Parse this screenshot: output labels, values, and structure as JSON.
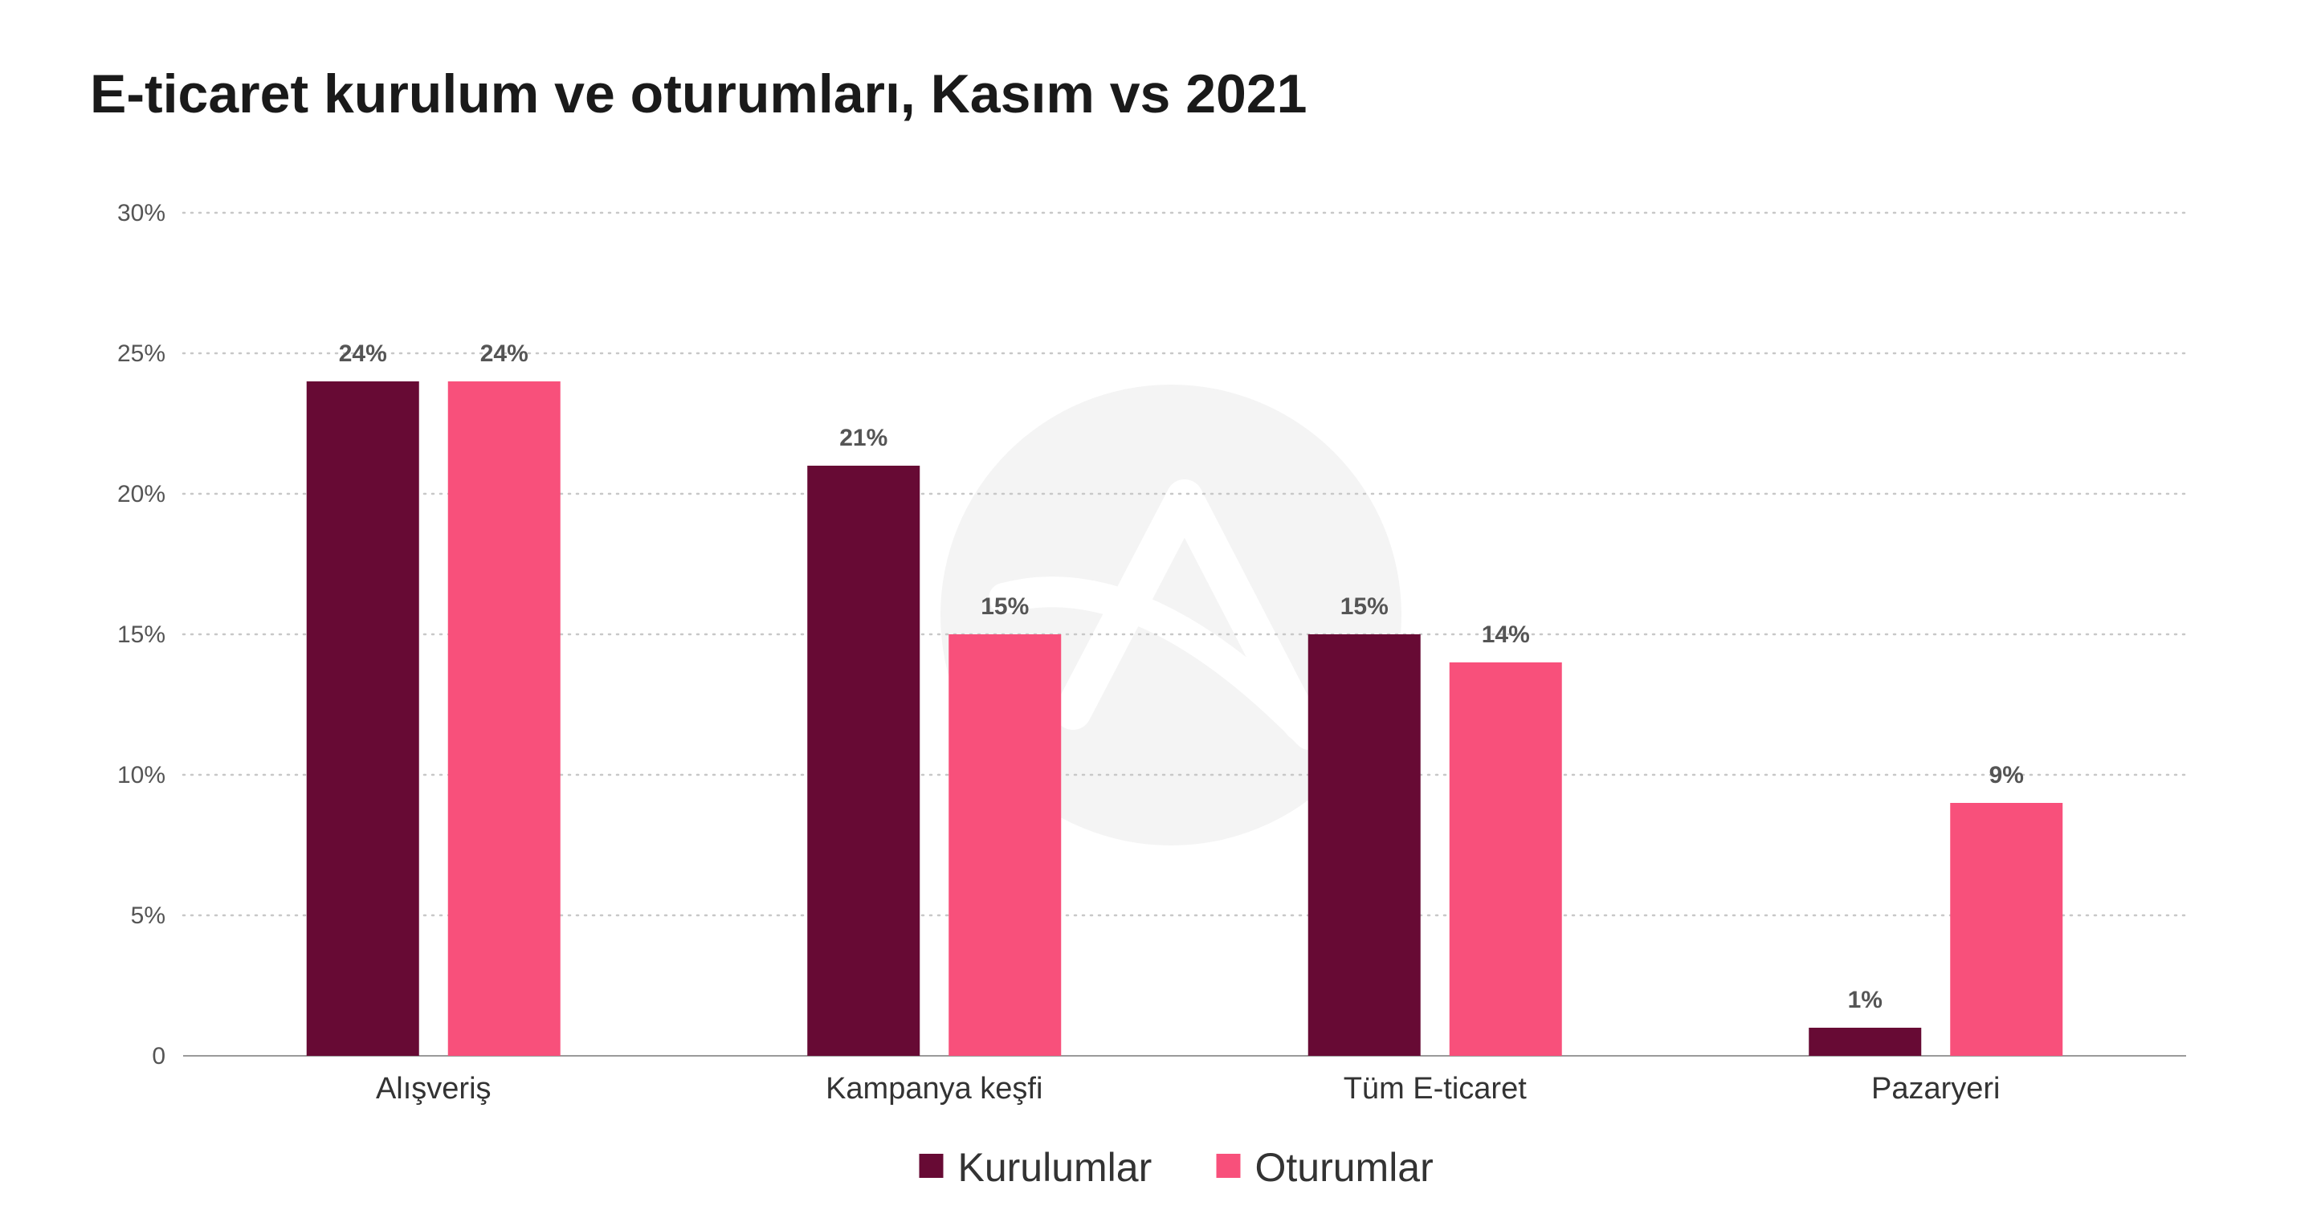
{
  "chart_data": {
    "type": "bar",
    "title": "E-ticaret kurulum ve oturumları, Kasım vs 2021",
    "xlabel": "",
    "ylabel": "",
    "categories": [
      "Alışveriş",
      "Kampanya keşfi",
      "Tüm E-ticaret",
      "Pazaryeri"
    ],
    "series": [
      {
        "name": "Kurulumlar",
        "color": "#670a34",
        "values": [
          24,
          21,
          15,
          1
        ],
        "labels": [
          "24%",
          "21%",
          "15%",
          "1%"
        ]
      },
      {
        "name": "Oturumlar",
        "color": "#f8507b",
        "values": [
          24,
          15,
          14,
          9
        ],
        "labels": [
          "24%",
          "15%",
          "14%",
          "9%"
        ]
      }
    ],
    "ylim": [
      0,
      30
    ],
    "yticks": [
      0,
      5,
      10,
      15,
      20,
      25,
      30
    ],
    "ytick_labels": [
      "0",
      "5%",
      "10%",
      "15%",
      "20%",
      "25%",
      "30%"
    ],
    "grid": true,
    "legend": "bottom-center"
  }
}
